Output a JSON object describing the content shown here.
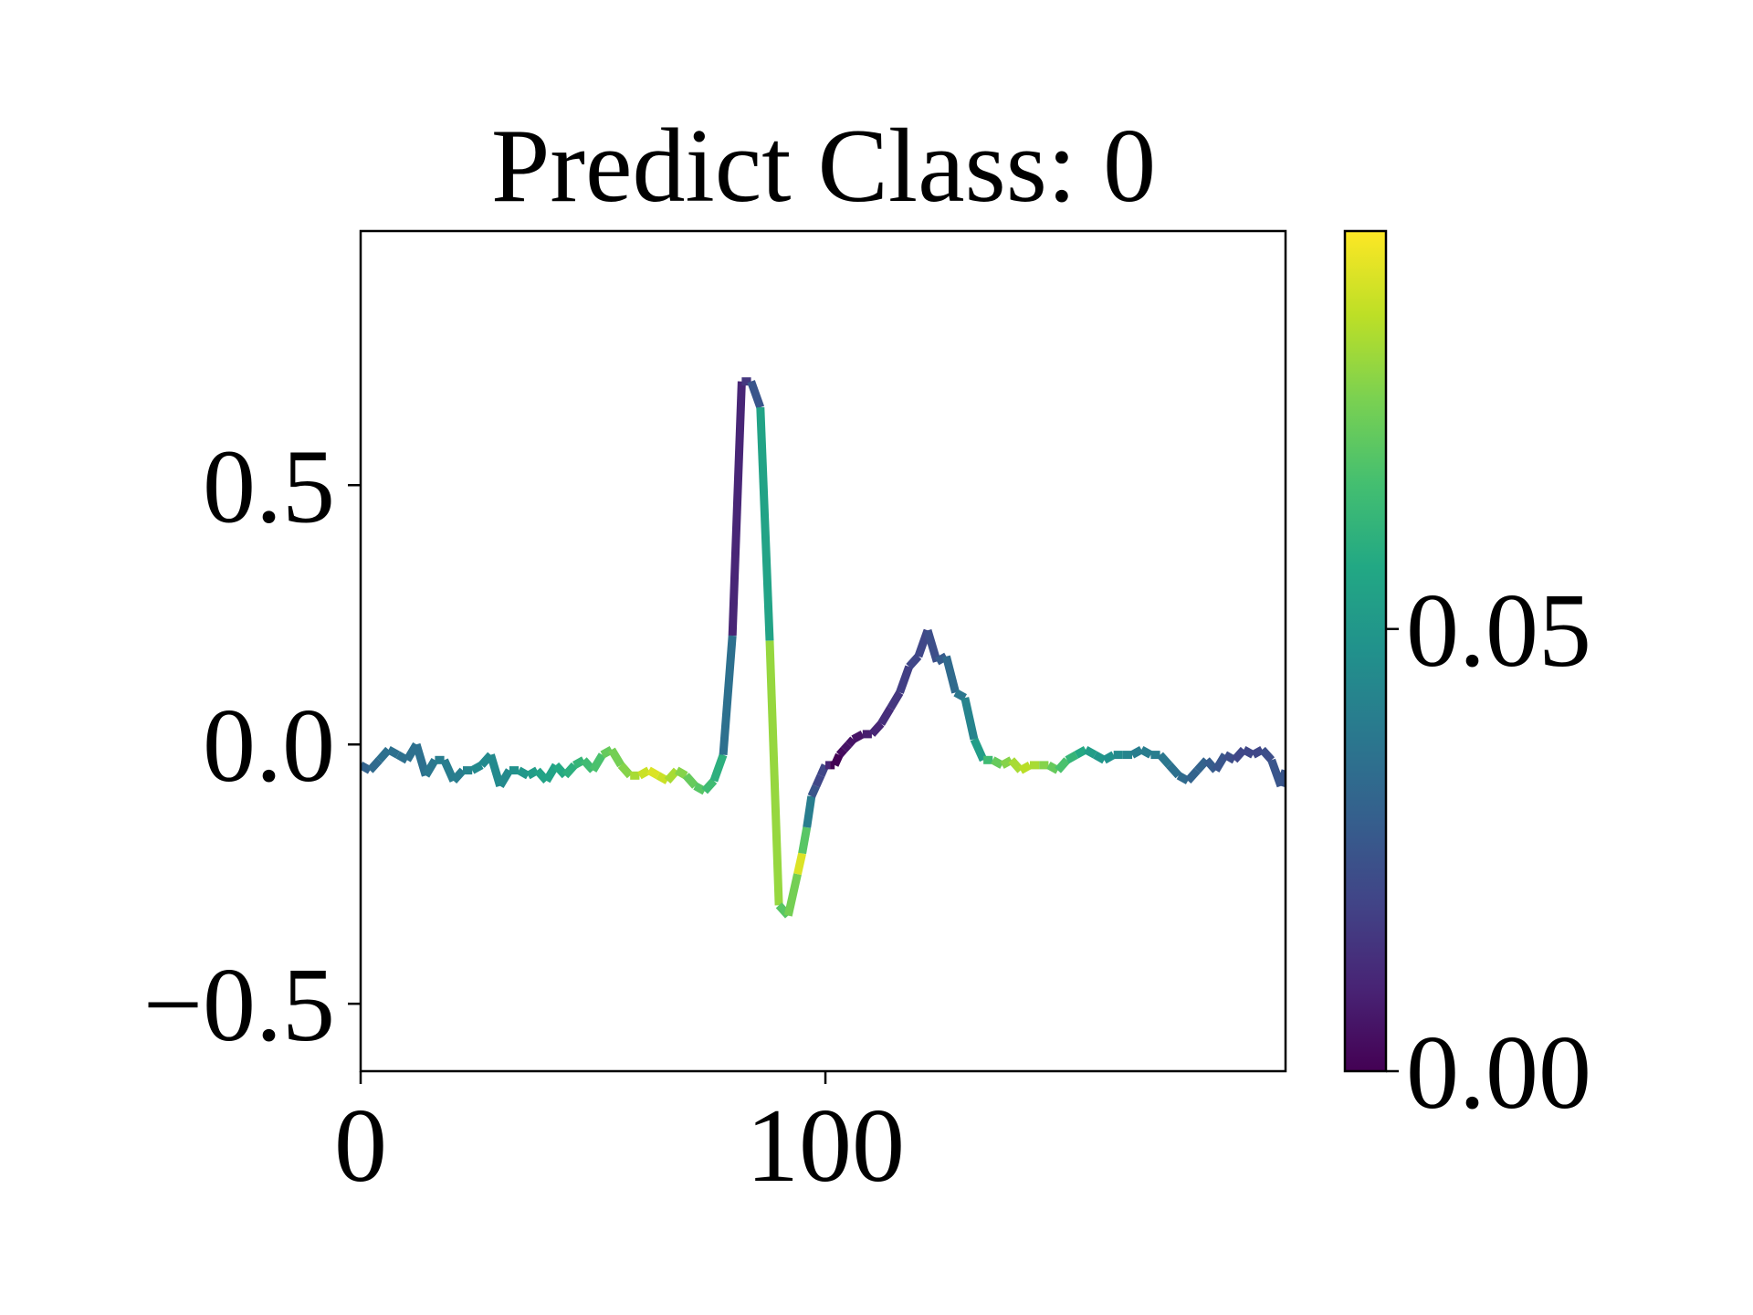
{
  "chart_data": {
    "type": "line",
    "title": "Predict Class: 0",
    "xlabel": "",
    "ylabel": "",
    "xlim": [
      0,
      199
    ],
    "ylim": [
      -0.63,
      0.99
    ],
    "xticks": [
      0,
      100
    ],
    "xtick_labels": [
      "0",
      "100"
    ],
    "yticks": [
      -0.5,
      0.0,
      0.5
    ],
    "ytick_labels": [
      "−0.5",
      "0.0",
      "0.5"
    ],
    "grid": false,
    "legend": "none",
    "colormap": "viridis",
    "colorbar": {
      "range": [
        0.0,
        0.095
      ],
      "ticks": [
        0.0,
        0.05
      ],
      "tick_labels": [
        "0.00",
        "0.05"
      ]
    },
    "series": [
      {
        "x": [
          0,
          2,
          4,
          6,
          8,
          10,
          12,
          14,
          16,
          18,
          20,
          22,
          24,
          26,
          28,
          30,
          32,
          34,
          36,
          38,
          40,
          42,
          44,
          46,
          48,
          50,
          52,
          54,
          56,
          58,
          60,
          62,
          64,
          66,
          68,
          70,
          72,
          74,
          76,
          78,
          80,
          82,
          84,
          86,
          88,
          90,
          92,
          94,
          95,
          96,
          97,
          98,
          99,
          100,
          101,
          102,
          103,
          104,
          105,
          106,
          108,
          110,
          112,
          114,
          116,
          118,
          120,
          122,
          124,
          126,
          128,
          130,
          132,
          134,
          136,
          138,
          140,
          142,
          144,
          146,
          148,
          150,
          152,
          154,
          156,
          158,
          160,
          162,
          164,
          166,
          168,
          170,
          172,
          174,
          176,
          178,
          180,
          182,
          184,
          186,
          188,
          190,
          192,
          194,
          196,
          198,
          199
        ],
        "y": [
          -0.04,
          -0.05,
          -0.03,
          -0.01,
          -0.02,
          -0.03,
          0.0,
          -0.06,
          -0.03,
          -0.03,
          -0.07,
          -0.05,
          -0.05,
          -0.04,
          -0.02,
          -0.08,
          -0.05,
          -0.05,
          -0.06,
          -0.05,
          -0.07,
          -0.04,
          -0.06,
          -0.04,
          -0.03,
          -0.05,
          -0.02,
          -0.01,
          -0.04,
          -0.06,
          -0.06,
          -0.05,
          -0.06,
          -0.07,
          -0.05,
          -0.06,
          -0.08,
          -0.09,
          -0.07,
          -0.02,
          0.21,
          0.7,
          0.7,
          0.65,
          0.2,
          -0.31,
          -0.33,
          -0.25,
          -0.21,
          -0.16,
          -0.1,
          -0.08,
          -0.06,
          -0.04,
          -0.04,
          -0.04,
          -0.02,
          -0.01,
          0.0,
          0.01,
          0.02,
          0.02,
          0.04,
          0.07,
          0.1,
          0.15,
          0.17,
          0.22,
          0.16,
          0.17,
          0.1,
          0.09,
          0.01,
          -0.03,
          -0.03,
          -0.04,
          -0.03,
          -0.05,
          -0.04,
          -0.04,
          -0.04,
          -0.05,
          -0.03,
          -0.02,
          -0.01,
          -0.02,
          -0.03,
          -0.02,
          -0.02,
          -0.02,
          -0.01,
          -0.02,
          -0.02,
          -0.04,
          -0.06,
          -0.07,
          -0.05,
          -0.03,
          -0.05,
          -0.02,
          -0.03,
          -0.01,
          -0.02,
          -0.01,
          -0.03,
          -0.08,
          -0.05
        ],
        "attribution": [
          0.03,
          0.03,
          0.035,
          0.035,
          0.035,
          0.035,
          0.035,
          0.035,
          0.04,
          0.04,
          0.04,
          0.04,
          0.045,
          0.045,
          0.045,
          0.045,
          0.045,
          0.05,
          0.05,
          0.055,
          0.055,
          0.055,
          0.06,
          0.06,
          0.065,
          0.065,
          0.07,
          0.075,
          0.075,
          0.08,
          0.085,
          0.09,
          0.09,
          0.085,
          0.08,
          0.075,
          0.07,
          0.07,
          0.06,
          0.06,
          0.01,
          0.01,
          0.02,
          0.03,
          0.08,
          0.08,
          0.06,
          0.09,
          0.09,
          0.05,
          0.03,
          0.02,
          0.02,
          0.02,
          0.0,
          0.0,
          0.0,
          0.005,
          0.005,
          0.005,
          0.005,
          0.01,
          0.01,
          0.015,
          0.015,
          0.02,
          0.02,
          0.02,
          0.025,
          0.03,
          0.035,
          0.04,
          0.045,
          0.06,
          0.07,
          0.075,
          0.08,
          0.085,
          0.085,
          0.08,
          0.075,
          0.07,
          0.065,
          0.06,
          0.055,
          0.05,
          0.05,
          0.045,
          0.045,
          0.04,
          0.04,
          0.04,
          0.04,
          0.035,
          0.035,
          0.03,
          0.03,
          0.03,
          0.025,
          0.025,
          0.02,
          0.02,
          0.02,
          0.02,
          0.025,
          0.025,
          0.025
        ]
      }
    ]
  }
}
